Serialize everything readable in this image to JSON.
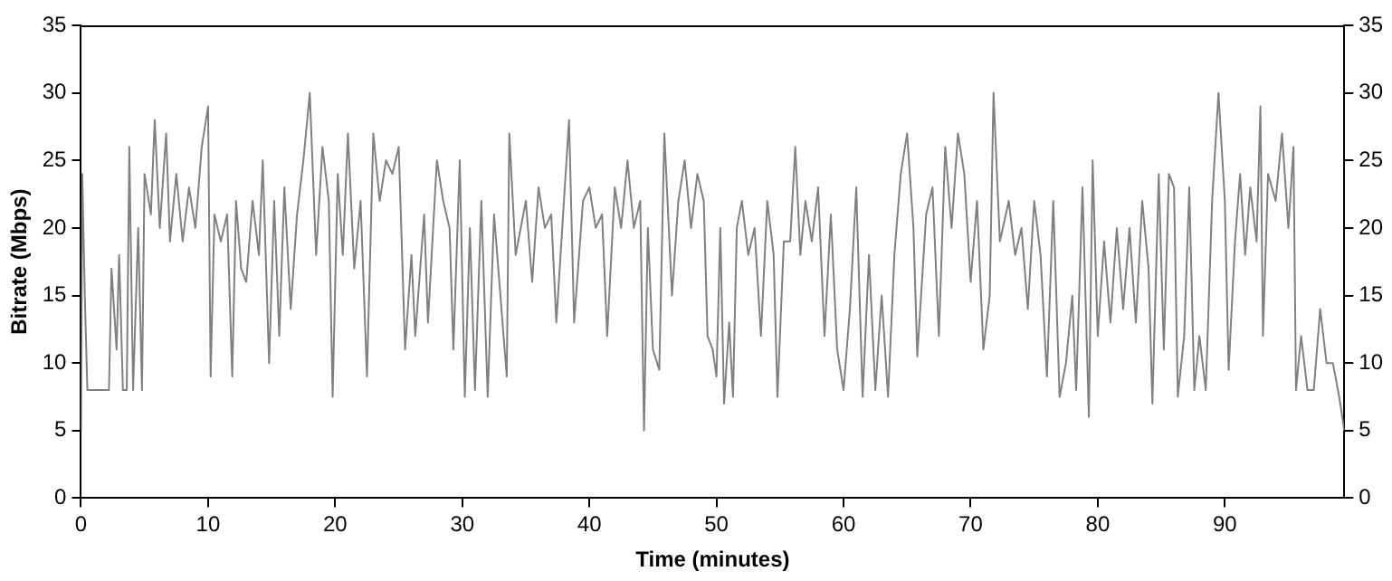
{
  "chart_data": {
    "type": "line",
    "xlabel": "Time (minutes)",
    "ylabel": "Bitrate (Mbps)",
    "xlim": [
      0,
      99.4
    ],
    "xticks": [
      0,
      10,
      20,
      30,
      40,
      50,
      60,
      70,
      80,
      90
    ],
    "ylim": [
      0,
      35
    ],
    "yticks": [
      0,
      5,
      10,
      15,
      20,
      25,
      30,
      35
    ],
    "y2lim": [
      0,
      35
    ],
    "y2ticks": [
      0,
      5,
      10,
      15,
      20,
      25,
      30,
      35
    ],
    "grid": false,
    "legend": false,
    "marker": "none",
    "line_style": "solid",
    "series": [
      {
        "color": "#808080",
        "x": [
          0,
          0.1,
          0.3,
          0.5,
          1.5,
          2.2,
          2.4,
          2.8,
          3,
          3.3,
          3.6,
          3.8,
          4.1,
          4.5,
          4.8,
          5,
          5.5,
          5.8,
          6.2,
          6.7,
          7,
          7.5,
          8,
          8.5,
          9,
          9.5,
          10,
          10.2,
          10.5,
          11,
          11.5,
          11.9,
          12.2,
          12.6,
          13,
          13.5,
          14,
          14.3,
          14.8,
          15.2,
          15.6,
          16,
          16.5,
          17,
          17.5,
          18,
          18.5,
          19,
          19.5,
          19.8,
          20.2,
          20.6,
          21,
          21.5,
          22,
          22.5,
          23,
          23.5,
          24,
          24.5,
          25,
          25.5,
          26,
          26.3,
          27,
          27.3,
          28,
          28.5,
          29,
          29.3,
          29.8,
          30.2,
          30.6,
          31,
          31.5,
          32,
          32.5,
          33,
          33.5,
          33.7,
          34.2,
          35,
          35.5,
          36,
          36.5,
          37,
          37.4,
          38,
          38.4,
          38.8,
          39.5,
          40,
          40.5,
          41,
          41.4,
          42,
          42.5,
          43,
          43.5,
          44,
          44.3,
          44.6,
          45,
          45.5,
          45.9,
          46.5,
          47,
          47.5,
          48,
          48.5,
          49,
          49.3,
          49.7,
          50,
          50.3,
          50.6,
          51,
          51.3,
          51.6,
          52,
          52.5,
          53,
          53.5,
          54,
          54.5,
          54.8,
          55.3,
          55.8,
          56.2,
          56.6,
          57,
          57.5,
          58,
          58.5,
          59,
          59.5,
          60,
          60.5,
          61,
          61.5,
          62,
          62.5,
          63,
          63.5,
          64,
          64.5,
          65,
          65.5,
          65.8,
          66.5,
          67,
          67.5,
          68,
          68.5,
          69,
          69.5,
          70,
          70.5,
          71,
          71.5,
          71.8,
          72.3,
          73,
          73.5,
          74,
          74.5,
          75,
          75.5,
          76,
          76.5,
          77,
          77.5,
          78,
          78.3,
          78.8,
          79.3,
          79.6,
          80,
          80.5,
          81,
          81.5,
          82,
          82.5,
          83,
          83.5,
          84,
          84.3,
          84.8,
          85.2,
          85.6,
          86,
          86.3,
          86.8,
          87.2,
          87.6,
          88,
          88.5,
          89,
          89.5,
          90,
          90.3,
          90.8,
          91.2,
          91.6,
          92,
          92.5,
          92.8,
          93,
          93.4,
          94,
          94.5,
          95,
          95.4,
          95.6,
          96,
          96.5,
          97,
          97.5,
          98,
          98.5,
          99,
          99.4
        ],
        "values": [
          5,
          24,
          15,
          8,
          8,
          8,
          17,
          11,
          18,
          8,
          8,
          26,
          8,
          20,
          8,
          24,
          21,
          28,
          20,
          27,
          19,
          24,
          19,
          23,
          20,
          26,
          29,
          9,
          21,
          19,
          21,
          9,
          22,
          17,
          16,
          22,
          18,
          25,
          10,
          22,
          12,
          23,
          14,
          21,
          25,
          30,
          18,
          26,
          22,
          7.5,
          24,
          18,
          27,
          17,
          22,
          9,
          27,
          22,
          25,
          24,
          26,
          11,
          18,
          12,
          21,
          13,
          25,
          22,
          20,
          11,
          25,
          7.5,
          20,
          8,
          22,
          7.5,
          21,
          15,
          9,
          27,
          18,
          22,
          16,
          23,
          20,
          21,
          13,
          22,
          28,
          13,
          22,
          23,
          20,
          21,
          12,
          23,
          20,
          25,
          20,
          22,
          5,
          20,
          11,
          9.5,
          27,
          15,
          22,
          25,
          20,
          24,
          22,
          12,
          11,
          9,
          20,
          7,
          13,
          7.5,
          20,
          22,
          18,
          20,
          12,
          22,
          18,
          7.5,
          19,
          19,
          26,
          18,
          22,
          19,
          23,
          12,
          21,
          11,
          8,
          14,
          23,
          7.5,
          18,
          8,
          15,
          7.5,
          18,
          24,
          27,
          20,
          10.5,
          21,
          23,
          12,
          26,
          20,
          27,
          24,
          16,
          22,
          11,
          15,
          30,
          19,
          22,
          18,
          20,
          14,
          22,
          18,
          9,
          22,
          7.5,
          10,
          15,
          8,
          23,
          6,
          25,
          12,
          19,
          13,
          20,
          14,
          20,
          13,
          22,
          17,
          7,
          24,
          11,
          24,
          23,
          7.5,
          12,
          23,
          8,
          12,
          8,
          22,
          30,
          22,
          9.5,
          19,
          24,
          18,
          23,
          19,
          29,
          12,
          24,
          22,
          27,
          20,
          26,
          8,
          12,
          8,
          8,
          14,
          10,
          10,
          7.5,
          5
        ]
      }
    ]
  }
}
